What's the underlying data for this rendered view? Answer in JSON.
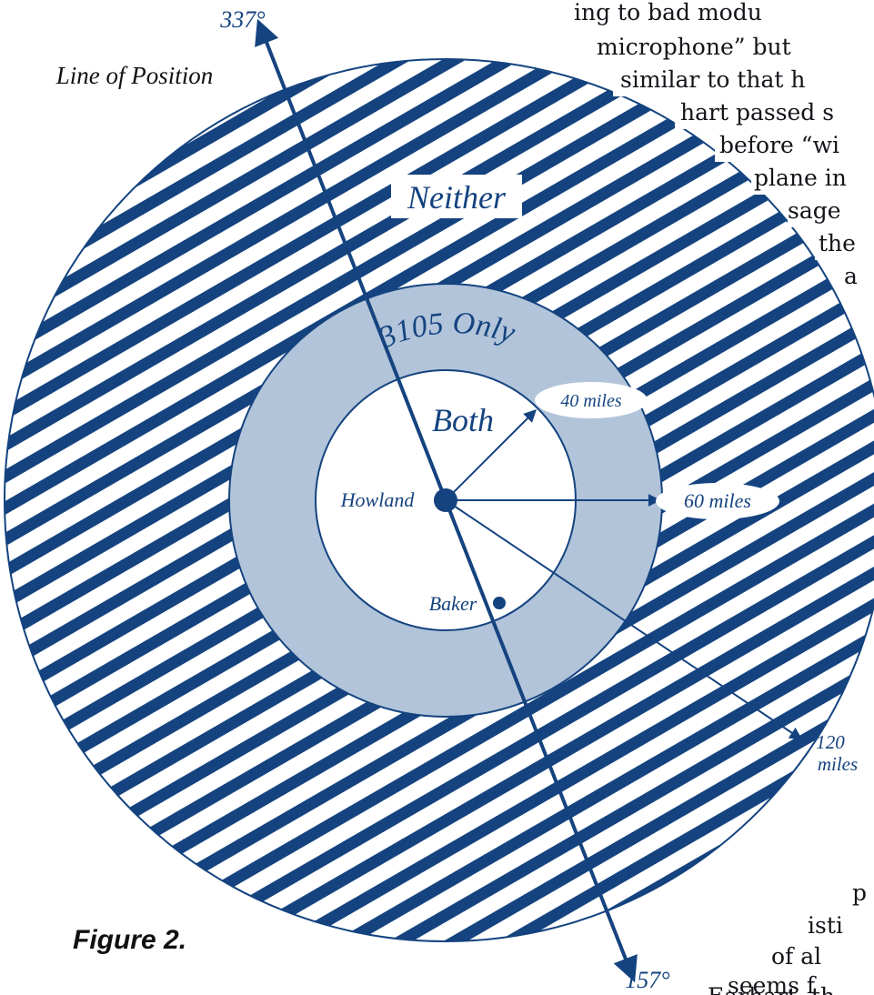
{
  "figure": {
    "caption": "Figure 2.",
    "line_of_position_label": "Line of Position",
    "bearings": {
      "top": "337°",
      "bottom": "157°"
    },
    "regions": {
      "outer": "Neither",
      "middle": "3105 Only",
      "inner": "Both"
    },
    "places": {
      "center": "Howland",
      "secondary": "Baker"
    },
    "radii": {
      "inner": "40 miles",
      "middle": "60 miles",
      "outer_value": "120",
      "outer_unit": "miles"
    },
    "colors": {
      "navy": "#14437f",
      "ring_fill": "#b1c4da",
      "hatch": "#14437f"
    }
  },
  "body_text_fragments": [
    "ing to bad modu",
    "microphone” but",
    "similar to that h",
    "hart passed s",
    "before “wi",
    "plane in",
    "sage",
    "the",
    "a",
    "p",
    "isti",
    "of al",
    "seems f",
    "Earhart, th"
  ]
}
